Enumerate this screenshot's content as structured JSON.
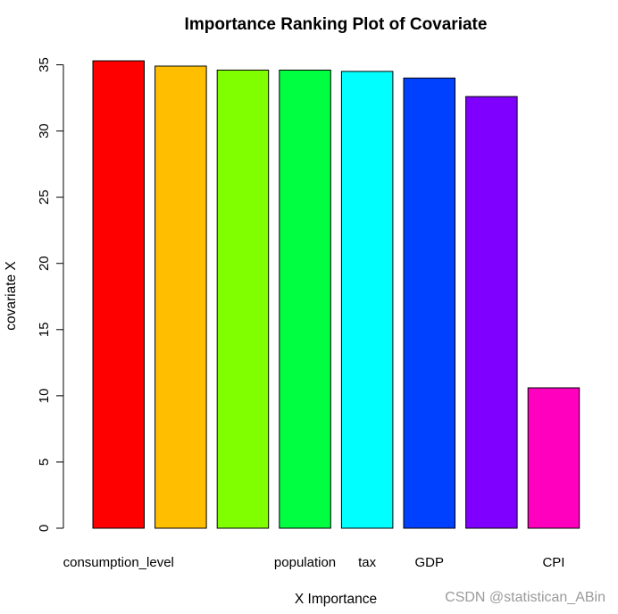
{
  "chart_data": {
    "type": "bar",
    "title": "Importance Ranking Plot of Covariate",
    "xlabel": "X Importance",
    "ylabel": "covariate X",
    "ylim": [
      0,
      35.5
    ],
    "yticks": [
      0,
      5,
      10,
      15,
      20,
      25,
      30,
      35
    ],
    "categories": [
      "consumption_level",
      "",
      "",
      "population",
      "tax",
      "GDP",
      "",
      "CPI"
    ],
    "values": [
      35.3,
      34.9,
      34.6,
      34.6,
      34.5,
      34.0,
      32.6,
      10.6
    ],
    "colors": [
      "#FF0000",
      "#FFBF00",
      "#80FF00",
      "#00FF40",
      "#00FFFF",
      "#0040FF",
      "#8000FF",
      "#FF00BF"
    ],
    "grid": false,
    "legend": "none"
  },
  "watermark": "CSDN @statistican_ABin"
}
